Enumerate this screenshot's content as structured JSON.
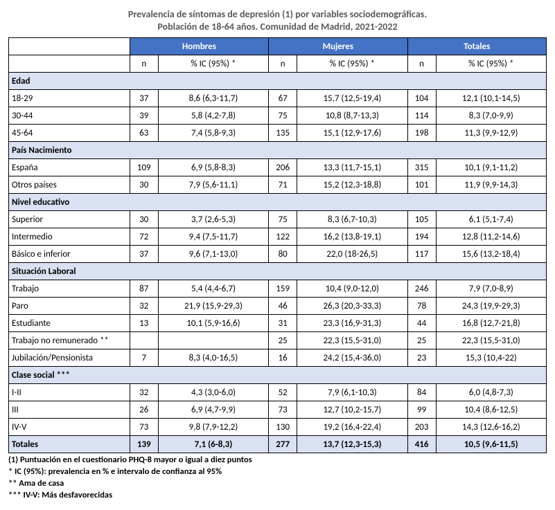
{
  "title_line1": "Prevalencia de síntomas de depresión (1) por variables sociodemográficas.",
  "title_line2": "Población de 18-64 años. Comunidad de Madrid, 2021-2022",
  "colors": {
    "header_bg": "#4472c4",
    "header_fg": "#ffffff",
    "section_bg": "#d9e1f2",
    "title_color": "#595959",
    "border": "#000000",
    "background": "#ffffff"
  },
  "columns": {
    "group_labels": [
      "Hombres",
      "Mujeres",
      "Totales"
    ],
    "sub_labels": [
      "n",
      "% IC (95%) *"
    ]
  },
  "sections": [
    {
      "name": "Edad",
      "rows": [
        {
          "label": "18-29",
          "h_n": "37",
          "h_p": "8,6 (6,3-11,7)",
          "m_n": "67",
          "m_p": "15,7 (12,5-19,4)",
          "t_n": "104",
          "t_p": "12,1 (10,1-14,5)"
        },
        {
          "label": "30-44",
          "h_n": "39",
          "h_p": "5,8 (4,2-7,8)",
          "m_n": "75",
          "m_p": "10,8 (8,7-13,3)",
          "t_n": "114",
          "t_p": "8,3 (7,0-9,9)"
        },
        {
          "label": "45-64",
          "h_n": "63",
          "h_p": "7,4 (5,8-9,3)",
          "m_n": "135",
          "m_p": "15,1 (12,9-17,6)",
          "t_n": "198",
          "t_p": "11,3 (9,9-12,9)"
        }
      ]
    },
    {
      "name": "País Nacimiento",
      "rows": [
        {
          "label": "España",
          "h_n": "109",
          "h_p": "6,9 (5,8-8,3)",
          "m_n": "206",
          "m_p": "13,3 (11,7-15,1)",
          "t_n": "315",
          "t_p": "10,1 (9,1-11,2)"
        },
        {
          "label": "Otros países",
          "h_n": "30",
          "h_p": "7,9 (5,6-11,1)",
          "m_n": "71",
          "m_p": "15,2 (12,3-18,8)",
          "t_n": "101",
          "t_p": "11,9 (9,9-14,3)"
        }
      ]
    },
    {
      "name": "Nivel educativo",
      "rows": [
        {
          "label": "Superior",
          "h_n": "30",
          "h_p": "3,7 (2,6-5,3)",
          "m_n": "75",
          "m_p": "8,3 (6,7-10,3)",
          "t_n": "105",
          "t_p": "6,1 (5,1-7,4)"
        },
        {
          "label": "Intermedio",
          "h_n": "72",
          "h_p": "9,4 (7,5-11,7)",
          "m_n": "122",
          "m_p": "16,2 (13,8-19,1)",
          "t_n": "194",
          "t_p": "12,8 (11,2-14,6)"
        },
        {
          "label": "Básico e inferior",
          "h_n": "37",
          "h_p": "9,6 (7,1-13,0)",
          "m_n": "80",
          "m_p": "22,0 (18-26,5)",
          "t_n": "117",
          "t_p": "15,6 (13,2-18,4)"
        }
      ]
    },
    {
      "name": "Situación Laboral",
      "rows": [
        {
          "label": "Trabajo",
          "h_n": "87",
          "h_p": "5,4 (4,4-6,7)",
          "m_n": "159",
          "m_p": "10,4 (9,0-12,0)",
          "t_n": "246",
          "t_p": "7,9 (7,0-8,9)"
        },
        {
          "label": "Paro",
          "h_n": "32",
          "h_p": "21,9 (15,9-29,3)",
          "m_n": "46",
          "m_p": "26,3 (20,3-33,3)",
          "t_n": "78",
          "t_p": "24,3 (19,9-29,3)"
        },
        {
          "label": "Estudiante",
          "h_n": "13",
          "h_p": "10,1 (5,9-16,6)",
          "m_n": "31",
          "m_p": "23,3 (16,9-31,3)",
          "t_n": "44",
          "t_p": "16,8 (12,7-21,8)"
        },
        {
          "label": "Trabajo no remunerado **",
          "h_n": "",
          "h_p": "",
          "m_n": "25",
          "m_p": "22,3 (15,5-31,0)",
          "t_n": "25",
          "t_p": "22,3 (15,5-31,0)"
        },
        {
          "label": "Jubilación/Pensionista",
          "h_n": "7",
          "h_p": "8,3 (4,0-16,5)",
          "m_n": "16",
          "m_p": "24,2 (15,4-36,0)",
          "t_n": "23",
          "t_p": "15,3 (10,4-22)"
        }
      ]
    },
    {
      "name": "Clase social ***",
      "rows": [
        {
          "label": "I-II",
          "h_n": "32",
          "h_p": "4,3 (3,0-6,0)",
          "m_n": "52",
          "m_p": "7,9 (6,1-10,3)",
          "t_n": "84",
          "t_p": "6,0 (4,8-7,3)"
        },
        {
          "label": "III",
          "h_n": "26",
          "h_p": "6,9 (4,7-9,9)",
          "m_n": "73",
          "m_p": "12,7 (10,2-15,7)",
          "t_n": "99",
          "t_p": "10,4 (8,6-12,5)"
        },
        {
          "label": "IV-V",
          "h_n": "73",
          "h_p": "9,8 (7,9-12,2)",
          "m_n": "130",
          "m_p": "19,2 (16,4-22,4)",
          "t_n": "203",
          "t_p": "14,3 (12,6-16,2)"
        }
      ]
    }
  ],
  "totals": {
    "label": "Totales",
    "h_n": "139",
    "h_p": "7,1 (6-8,3)",
    "m_n": "277",
    "m_p": "13,7 (12,3-15,3)",
    "t_n": "416",
    "t_p": "10,5 (9,6-11,5)"
  },
  "footnotes": [
    "(1) Puntuación en el cuestionario PHQ-8 mayor o igual a diez puntos",
    "* IC (95%): prevalencia en % e intervalo de confianza al 95%",
    "** Ama de casa",
    "*** IV-V: Más desfavorecidas"
  ]
}
